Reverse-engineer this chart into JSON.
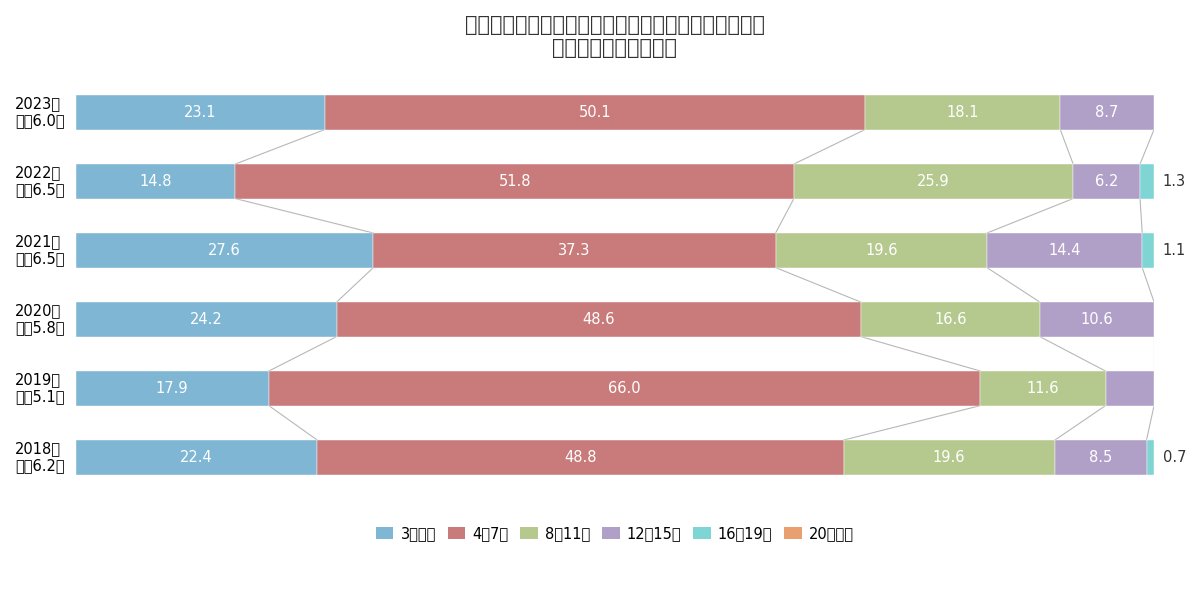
{
  "title_line1": "中部圏　新築マンションの徒歩時間別供給シェア推移",
  "title_line2": "（徒歩物件のみ集計）",
  "years": [
    "2023年\n平均6.0分",
    "2022年\n平均6.5分",
    "2021年\n平均6.5分",
    "2020年\n平均5.8分",
    "2019年\n平均5.1分",
    "2018年\n平均6.2分"
  ],
  "categories": [
    "3分以内",
    "4〜7分",
    "8〜11分",
    "12〜15分",
    "16〜19分",
    "20分以上"
  ],
  "colors": [
    "#7EB6D4",
    "#C97B7B",
    "#B5C98E",
    "#B0A0C8",
    "#7FD4D4",
    "#E8A070"
  ],
  "data": [
    [
      23.1,
      50.1,
      18.1,
      8.7,
      0.0,
      0.0
    ],
    [
      14.8,
      51.8,
      25.9,
      6.2,
      1.3,
      0.0
    ],
    [
      27.6,
      37.3,
      19.6,
      14.4,
      1.1,
      0.0
    ],
    [
      24.2,
      48.6,
      16.6,
      10.6,
      0.0,
      0.0
    ],
    [
      17.9,
      66.0,
      11.6,
      4.5,
      0.0,
      0.0
    ],
    [
      22.4,
      48.8,
      19.6,
      8.5,
      0.7,
      0.0
    ]
  ],
  "outside_labels": [
    [
      null,
      null,
      null,
      null,
      null,
      null
    ],
    [
      null,
      null,
      null,
      null,
      1.3,
      null
    ],
    [
      null,
      null,
      null,
      null,
      1.1,
      null
    ],
    [
      null,
      null,
      null,
      null,
      null,
      null
    ],
    [
      null,
      null,
      null,
      null,
      null,
      null
    ],
    [
      null,
      null,
      null,
      null,
      0.7,
      null
    ]
  ],
  "background_color": "#FFFFFF",
  "bar_height": 0.5,
  "title_fontsize": 15,
  "label_fontsize": 10.5,
  "legend_fontsize": 10.5,
  "ytick_fontsize": 10.5
}
